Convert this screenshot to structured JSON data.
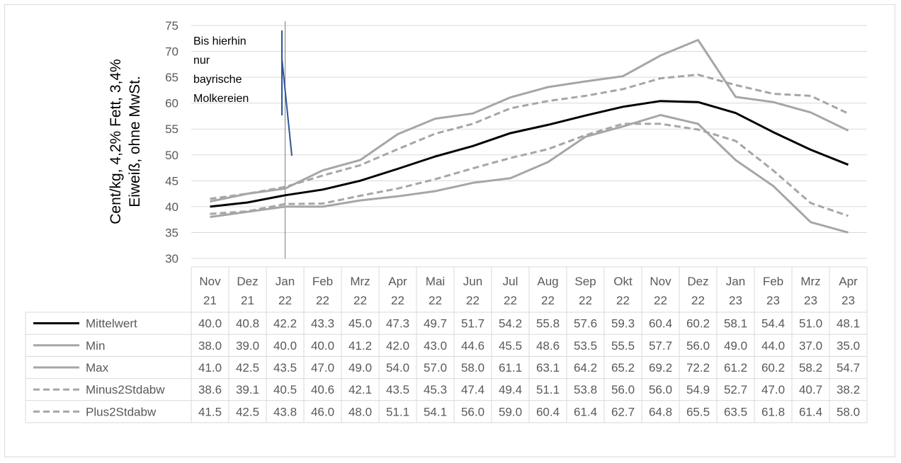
{
  "chart_data": {
    "type": "line",
    "ylabel_lines": [
      "Cent/kg, 4,2% Fett, 3,4%",
      "Eiweiß, ohne MwSt."
    ],
    "ylim": [
      30,
      75
    ],
    "yticks": [
      30,
      35,
      40,
      45,
      50,
      55,
      60,
      65,
      70,
      75
    ],
    "grid": true,
    "categories": [
      [
        "Nov",
        "21"
      ],
      [
        "Dez",
        "21"
      ],
      [
        "Jan",
        "22"
      ],
      [
        "Feb",
        "22"
      ],
      [
        "Mrz",
        "22"
      ],
      [
        "Apr",
        "22"
      ],
      [
        "Mai",
        "22"
      ],
      [
        "Jun",
        "22"
      ],
      [
        "Jul",
        "22"
      ],
      [
        "Aug",
        "22"
      ],
      [
        "Sep",
        "22"
      ],
      [
        "Okt",
        "22"
      ],
      [
        "Nov",
        "22"
      ],
      [
        "Dez",
        "22"
      ],
      [
        "Jan",
        "23"
      ],
      [
        "Feb",
        "23"
      ],
      [
        "Mrz",
        "23"
      ],
      [
        "Apr",
        "23"
      ]
    ],
    "series": [
      {
        "name": "Mittelwert",
        "color": "#000000",
        "dash": false,
        "values": [
          40.0,
          40.8,
          42.2,
          43.3,
          45.0,
          47.3,
          49.7,
          51.7,
          54.2,
          55.8,
          57.6,
          59.3,
          60.4,
          60.2,
          58.1,
          54.4,
          51.0,
          48.1
        ]
      },
      {
        "name": "Min",
        "color": "#a6a6a6",
        "dash": false,
        "values": [
          38.0,
          39.0,
          40.0,
          40.0,
          41.2,
          42.0,
          43.0,
          44.6,
          45.5,
          48.6,
          53.5,
          55.5,
          57.7,
          56.0,
          49.0,
          44.0,
          37.0,
          35.0
        ]
      },
      {
        "name": "Max",
        "color": "#a6a6a6",
        "dash": false,
        "values": [
          41.0,
          42.5,
          43.5,
          47.0,
          49.0,
          54.0,
          57.0,
          58.0,
          61.1,
          63.1,
          64.2,
          65.2,
          69.2,
          72.2,
          61.2,
          60.2,
          58.2,
          54.7
        ]
      },
      {
        "name": "Minus2Stdabw",
        "color": "#a6a6a6",
        "dash": true,
        "values": [
          38.6,
          39.1,
          40.5,
          40.6,
          42.1,
          43.5,
          45.3,
          47.4,
          49.4,
          51.1,
          53.8,
          56.0,
          56.0,
          54.9,
          52.7,
          47.0,
          40.7,
          38.2
        ]
      },
      {
        "name": "Plus2Stdabw",
        "color": "#a6a6a6",
        "dash": true,
        "values": [
          41.5,
          42.5,
          43.8,
          46.0,
          48.0,
          51.1,
          54.1,
          56.0,
          59.0,
          60.4,
          61.4,
          62.7,
          64.8,
          65.5,
          63.5,
          61.8,
          61.4,
          58.0
        ]
      }
    ],
    "annotation": {
      "lines": [
        "Bis hierhin",
        "nur",
        "bayrische",
        "Molkereien"
      ],
      "marker_after_category": 2
    }
  }
}
